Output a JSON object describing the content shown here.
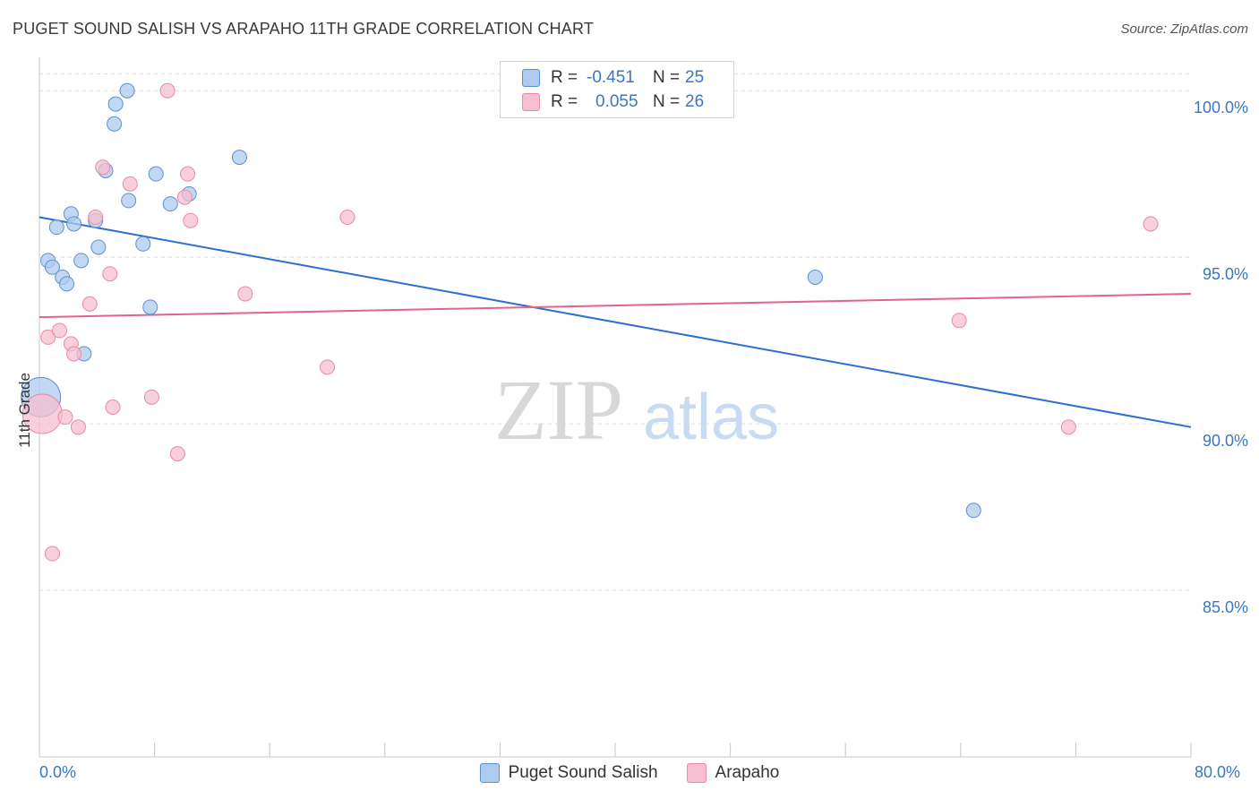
{
  "title": "PUGET SOUND SALISH VS ARAPAHO 11TH GRADE CORRELATION CHART",
  "source": "Source: ZipAtlas.com",
  "watermark": {
    "zip": "ZIP",
    "atlas": "atlas"
  },
  "legend": {
    "rows": [
      {
        "r_label": "R =",
        "r_value": "-0.451",
        "n_label": "N =",
        "n_value": "25"
      },
      {
        "r_label": "R =",
        "r_value": "0.055",
        "n_label": "N =",
        "n_value": "26"
      }
    ]
  },
  "colors": {
    "blue_fill": "#aecbee",
    "blue_stroke": "#5b8fd6",
    "blue_line": "#2b6fd0",
    "pink_fill": "#f7bfd0",
    "pink_stroke": "#e88aa8",
    "pink_line": "#e0648e",
    "tick_label": "#3b76c5",
    "grid": "#dcdcdc"
  },
  "chart_data": {
    "type": "scatter",
    "title": "PUGET SOUND SALISH VS ARAPAHO 11TH GRADE CORRELATION CHART",
    "xlabel": "",
    "ylabel": "11th Grade",
    "xlim": [
      0,
      80
    ],
    "ylim": [
      80,
      101
    ],
    "x_tick_labels": [
      "0.0%",
      "80.0%"
    ],
    "y_ticks": [
      85,
      90,
      95,
      100
    ],
    "y_tick_labels": [
      "85.0%",
      "90.0%",
      "95.0%",
      "100.0%"
    ],
    "grid": true,
    "legend_position": "top-center",
    "series": [
      {
        "name": "Puget Sound Salish",
        "color": "#aecbee",
        "points": [
          [
            0.6,
            94.9
          ],
          [
            0.9,
            94.7
          ],
          [
            1.2,
            95.9
          ],
          [
            1.6,
            94.4
          ],
          [
            1.9,
            94.2
          ],
          [
            2.2,
            96.3
          ],
          [
            2.4,
            96.0
          ],
          [
            2.9,
            94.9
          ],
          [
            3.1,
            92.1
          ],
          [
            3.9,
            96.1
          ],
          [
            4.1,
            95.3
          ],
          [
            4.6,
            97.6
          ],
          [
            5.2,
            99.0
          ],
          [
            5.3,
            99.6
          ],
          [
            6.1,
            100.0
          ],
          [
            6.2,
            96.7
          ],
          [
            7.2,
            95.4
          ],
          [
            7.7,
            93.5
          ],
          [
            8.1,
            97.5
          ],
          [
            9.1,
            96.6
          ],
          [
            10.4,
            96.9
          ],
          [
            13.9,
            98.0
          ],
          [
            0.1,
            90.8
          ],
          [
            53.9,
            94.4
          ],
          [
            64.9,
            87.4
          ]
        ],
        "trend": {
          "x": [
            0,
            80
          ],
          "y": [
            96.2,
            89.9
          ]
        }
      },
      {
        "name": "Arapaho",
        "color": "#f7bfd0",
        "points": [
          [
            0.2,
            90.3
          ],
          [
            0.6,
            92.6
          ],
          [
            0.9,
            86.1
          ],
          [
            1.4,
            92.8
          ],
          [
            1.8,
            90.2
          ],
          [
            2.2,
            92.4
          ],
          [
            2.4,
            92.1
          ],
          [
            2.7,
            89.9
          ],
          [
            3.5,
            93.6
          ],
          [
            3.9,
            96.2
          ],
          [
            4.4,
            97.7
          ],
          [
            4.9,
            94.5
          ],
          [
            5.1,
            90.5
          ],
          [
            6.3,
            97.2
          ],
          [
            7.8,
            90.8
          ],
          [
            8.9,
            100.0
          ],
          [
            9.6,
            89.1
          ],
          [
            10.1,
            96.8
          ],
          [
            10.3,
            97.5
          ],
          [
            10.5,
            96.1
          ],
          [
            14.3,
            93.9
          ],
          [
            20.0,
            91.7
          ],
          [
            21.4,
            96.2
          ],
          [
            63.9,
            93.1
          ],
          [
            71.5,
            89.9
          ],
          [
            77.2,
            96.0
          ]
        ],
        "trend": {
          "x": [
            0,
            80
          ],
          "y": [
            93.2,
            93.9
          ]
        }
      }
    ]
  }
}
